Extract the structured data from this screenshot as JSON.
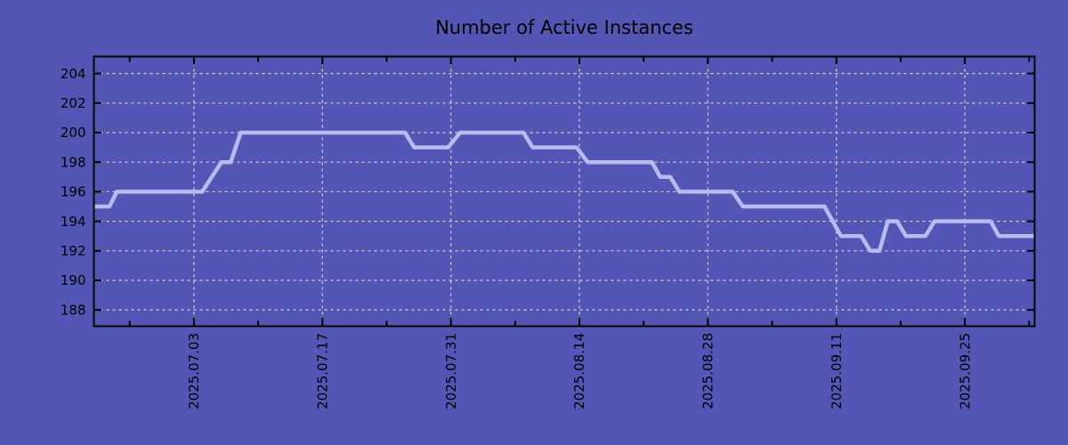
{
  "colors": {
    "background": "#5356b4",
    "line": "#b8bbef",
    "grid": "#d6d6d6",
    "axis": "#000000",
    "text": "#000000"
  },
  "chart_data": {
    "type": "line",
    "title": "Number of Active Instances",
    "grid": true,
    "legend": false,
    "x_axis": {
      "unit": "date",
      "domain_days": [
        0,
        102.5
      ],
      "visible_span_approx": "2025.06.22 to 2025.10.03",
      "major_ticks": [
        {
          "label": "2025.07.03",
          "day": 10.9
        },
        {
          "label": "2025.07.17",
          "day": 24.9
        },
        {
          "label": "2025.07.31",
          "day": 38.9
        },
        {
          "label": "2025.08.14",
          "day": 52.9
        },
        {
          "label": "2025.08.28",
          "day": 66.9
        },
        {
          "label": "2025.09.11",
          "day": 80.9
        },
        {
          "label": "2025.09.25",
          "day": 94.9
        }
      ],
      "minor_tick_days": [
        3.9,
        17.9,
        31.9,
        45.9,
        59.9,
        73.9,
        87.9,
        101.9
      ]
    },
    "y_axis": {
      "ticks": [
        188,
        190,
        192,
        194,
        196,
        198,
        200,
        202,
        204
      ],
      "range": [
        186.9,
        205.15
      ]
    },
    "series": [
      {
        "name": "Active Instances",
        "color": "#b8bbef",
        "points_day_value": [
          [
            0,
            195
          ],
          [
            1.7,
            195
          ],
          [
            2.5,
            196
          ],
          [
            11.8,
            196
          ],
          [
            13.9,
            198
          ],
          [
            14.9,
            198
          ],
          [
            16,
            200
          ],
          [
            33.9,
            200
          ],
          [
            34.9,
            199
          ],
          [
            38.6,
            199
          ],
          [
            39.9,
            200
          ],
          [
            46.8,
            200
          ],
          [
            47.8,
            199
          ],
          [
            52.6,
            199
          ],
          [
            53.8,
            198
          ],
          [
            60.8,
            198
          ],
          [
            61.7,
            197
          ],
          [
            62.8,
            197
          ],
          [
            63.8,
            196
          ],
          [
            69.6,
            196
          ],
          [
            70.7,
            195
          ],
          [
            79.6,
            195
          ],
          [
            81.4,
            193
          ],
          [
            83.6,
            193
          ],
          [
            84.6,
            192
          ],
          [
            85.6,
            192
          ],
          [
            86.5,
            194
          ],
          [
            87.5,
            194
          ],
          [
            88.5,
            193
          ],
          [
            90.6,
            193
          ],
          [
            91.6,
            194
          ],
          [
            97.7,
            194
          ],
          [
            98.6,
            193
          ],
          [
            102.5,
            193
          ]
        ]
      }
    ]
  }
}
